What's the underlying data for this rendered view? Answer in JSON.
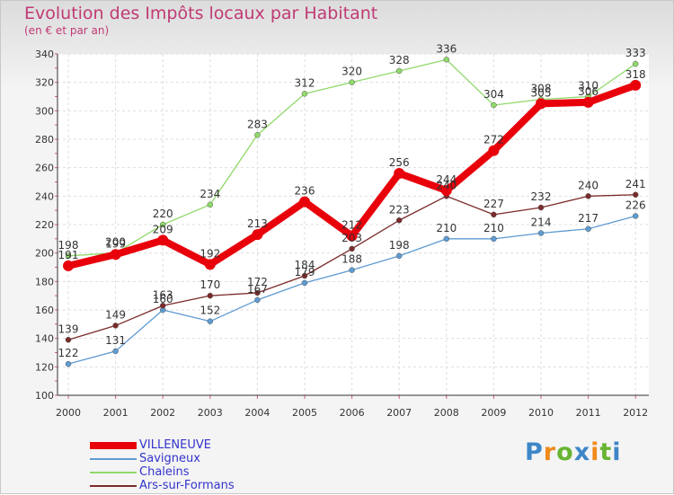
{
  "title": "Evolution des Impôts locaux par Habitant",
  "subtitle": "(en € et par an)",
  "logo": {
    "letters": [
      "P",
      "r",
      "o",
      "x",
      "i",
      "t",
      "i"
    ],
    "colors": [
      "#3e86c8",
      "#f08a1c",
      "#67b432",
      "#3e86c8",
      "#f08a1c",
      "#67b432",
      "#3e86c8"
    ]
  },
  "chart_data": {
    "type": "line",
    "title": "Evolution des Impôts locaux par Habitant",
    "subtitle": "(en € et par an)",
    "xlabel": "",
    "ylabel": "",
    "categories": [
      "2000",
      "2001",
      "2002",
      "2003",
      "2004",
      "2005",
      "2006",
      "2007",
      "2008",
      "2009",
      "2010",
      "2011",
      "2012"
    ],
    "ylim": [
      100,
      340
    ],
    "yticks": [
      100,
      120,
      140,
      160,
      180,
      200,
      220,
      240,
      260,
      280,
      300,
      320,
      340
    ],
    "grid": true,
    "legend_position": "bottom-left",
    "series": [
      {
        "name": "VILLENEUVE",
        "color": "#e8000b",
        "label_color": "#333333",
        "thick": true,
        "values": [
          191,
          199,
          209,
          192,
          213,
          236,
          212,
          256,
          244,
          272,
          305,
          306,
          318
        ]
      },
      {
        "name": "Savigneux",
        "color": "#5e9bd1",
        "label_color": "#333333",
        "thick": false,
        "values": [
          122,
          131,
          160,
          152,
          167,
          179,
          188,
          198,
          210,
          210,
          214,
          217,
          226
        ]
      },
      {
        "name": "Chaleins",
        "color": "#90d96a",
        "label_color": "#333333",
        "thick": false,
        "values": [
          198,
          200,
          220,
          234,
          283,
          312,
          320,
          328,
          336,
          304,
          308,
          310,
          333
        ]
      },
      {
        "name": "Ars-sur-Formans",
        "color": "#7b2a2a",
        "label_color": "#333333",
        "thick": false,
        "values": [
          139,
          149,
          163,
          170,
          172,
          184,
          203,
          223,
          240,
          227,
          232,
          240,
          241
        ]
      }
    ]
  }
}
